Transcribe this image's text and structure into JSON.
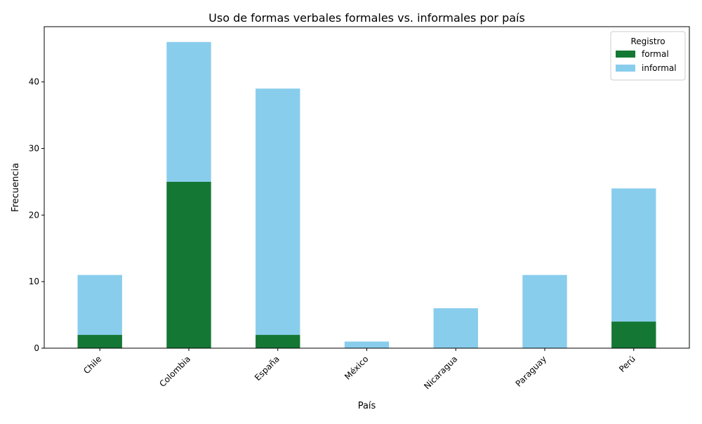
{
  "chart_data": {
    "type": "bar",
    "stacked": true,
    "title": "Uso de formas verbales formales vs. informales por país",
    "xlabel": "País",
    "ylabel": "Frecuencia",
    "categories": [
      "Chile",
      "Colombia",
      "España",
      "México",
      "Nicaragua",
      "Paraguay",
      "Perú"
    ],
    "series": [
      {
        "name": "formal",
        "color": "#147834",
        "values": [
          2,
          25,
          2,
          0,
          0,
          0,
          4
        ]
      },
      {
        "name": "informal",
        "color": "#89CDED",
        "values": [
          9,
          21,
          37,
          1,
          6,
          11,
          20
        ]
      }
    ],
    "ylim": [
      0,
      48.3
    ],
    "yticks": [
      0,
      10,
      20,
      30,
      40
    ],
    "grid": false,
    "legend": {
      "title": "Registro",
      "position": "top-right"
    }
  }
}
